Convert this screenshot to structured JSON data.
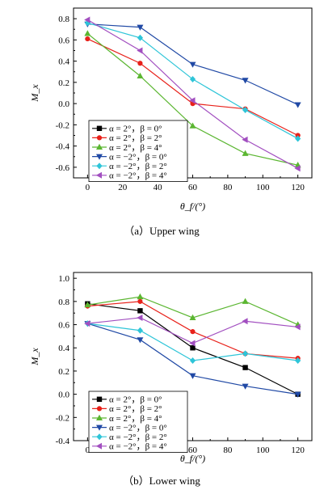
{
  "chart_data": [
    {
      "type": "line",
      "caption": "（a）Upper wing",
      "xlabel": "θ_f/(°)",
      "ylabel": "M_x",
      "xlim": [
        -8,
        128
      ],
      "ylim": [
        -0.7,
        0.9
      ],
      "xticks": [
        0,
        20,
        40,
        60,
        80,
        100,
        120
      ],
      "yticks": [
        -0.6,
        -0.4,
        -0.2,
        0.0,
        0.2,
        0.4,
        0.6,
        0.8
      ],
      "ytick_labels": [
        "-0.6",
        "-0.4",
        "-0.2",
        "0.0",
        "0.2",
        "0.4",
        "0.6",
        "0.8"
      ],
      "legend_position": "lower-left",
      "x": [
        0,
        30,
        60,
        90,
        120
      ],
      "series": [
        {
          "name": "α = 2°，β = 0°",
          "color": "#000000",
          "marker": "square",
          "values": [
            null,
            null,
            null,
            null,
            null
          ]
        },
        {
          "name": "α = 2°，β = 2°",
          "color": "#e8211a",
          "marker": "circle",
          "values": [
            0.61,
            0.38,
            0.0,
            -0.05,
            -0.3
          ]
        },
        {
          "name": "α = 2°，β = 4°",
          "color": "#5bb631",
          "marker": "triangle-up",
          "values": [
            0.66,
            0.26,
            -0.21,
            -0.47,
            -0.58
          ]
        },
        {
          "name": "α = −2°，β = 0°",
          "color": "#2049a5",
          "marker": "triangle-down",
          "values": [
            0.75,
            0.72,
            0.37,
            0.22,
            -0.01
          ]
        },
        {
          "name": "α = −2°，β = 2°",
          "color": "#2ec5d8",
          "marker": "diamond",
          "values": [
            0.76,
            0.62,
            0.23,
            -0.06,
            -0.33
          ]
        },
        {
          "name": "α = −2°，β = 4°",
          "color": "#a24fc0",
          "marker": "triangle-left",
          "values": [
            0.79,
            0.5,
            0.03,
            -0.34,
            -0.61
          ]
        }
      ]
    },
    {
      "type": "line",
      "caption": "（b）Lower wing",
      "xlabel": "θ_f/(°)",
      "ylabel": "M_x",
      "xlim": [
        -8,
        128
      ],
      "ylim": [
        -0.4,
        1.05
      ],
      "xticks": [
        0,
        20,
        40,
        60,
        80,
        100,
        120
      ],
      "yticks": [
        -0.4,
        -0.2,
        0.0,
        0.2,
        0.4,
        0.6,
        0.8,
        1.0
      ],
      "ytick_labels": [
        "-0.4",
        "-0.2",
        "0.0",
        "0.2",
        "0.4",
        "0.6",
        "0.8",
        "1.0"
      ],
      "legend_position": "lower-left",
      "x": [
        0,
        30,
        60,
        90,
        120
      ],
      "series": [
        {
          "name": "α = 2°，β = 0°",
          "color": "#000000",
          "marker": "square",
          "values": [
            0.78,
            0.72,
            0.4,
            0.23,
            0.0
          ]
        },
        {
          "name": "α = 2°，β = 2°",
          "color": "#e8211a",
          "marker": "circle",
          "values": [
            0.76,
            0.8,
            0.54,
            0.35,
            0.31
          ]
        },
        {
          "name": "α = 2°，β = 4°",
          "color": "#5bb631",
          "marker": "triangle-up",
          "values": [
            0.77,
            0.84,
            0.66,
            0.8,
            0.6
          ]
        },
        {
          "name": "α = −2°，β = 0°",
          "color": "#2049a5",
          "marker": "triangle-down",
          "values": [
            0.61,
            0.47,
            0.16,
            0.07,
            0.0
          ]
        },
        {
          "name": "α = −2°，β = 2°",
          "color": "#2ec5d8",
          "marker": "diamond",
          "values": [
            0.61,
            0.55,
            0.29,
            0.35,
            0.29
          ]
        },
        {
          "name": "α = −2°，β = 4°",
          "color": "#a24fc0",
          "marker": "triangle-left",
          "values": [
            0.61,
            0.66,
            0.44,
            0.63,
            0.58
          ]
        }
      ]
    }
  ]
}
